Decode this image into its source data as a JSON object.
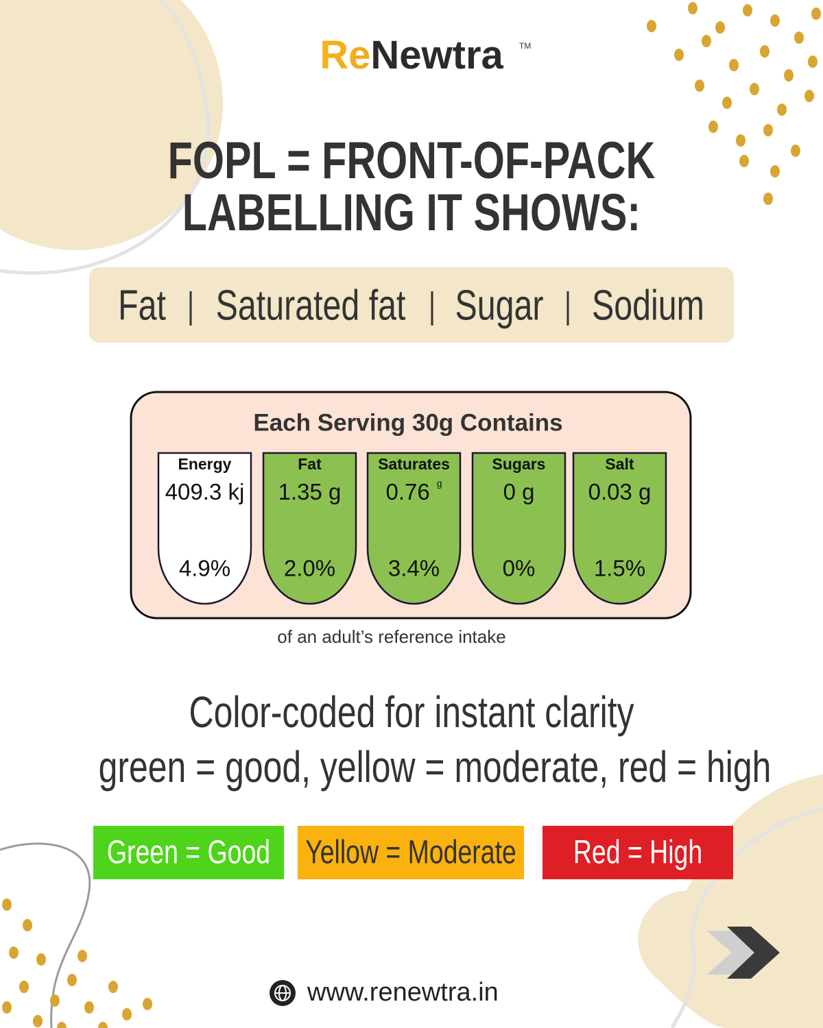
{
  "logo": {
    "part1": "Re",
    "part2": "Newtra",
    "mark": "TM"
  },
  "title": {
    "line1": "FOPL = FRONT-OF-PACK",
    "line2": "LABELLING IT SHOWS:"
  },
  "nutrients": [
    "Fat",
    "Saturated fat",
    "Sugar",
    "Sodium"
  ],
  "label": {
    "title": "Each Serving 30g Contains",
    "cells": [
      {
        "name": "Energy",
        "amount": "409.3 kj",
        "percent": "4.9%",
        "color": "#ffffff"
      },
      {
        "name": "Fat",
        "amount": "1.35 g",
        "percent": "2.0%",
        "color": "#8cc151"
      },
      {
        "name": "Saturates",
        "amount": "0.76",
        "unit": "g",
        "percent": "3.4%",
        "color": "#8cc151"
      },
      {
        "name": "Sugars",
        "amount": "0 g",
        "percent": "0%",
        "color": "#8cc151"
      },
      {
        "name": "Salt",
        "amount": "0.03 g",
        "percent": "1.5%",
        "color": "#8cc151"
      }
    ],
    "footnote": "of an adult’s reference intake"
  },
  "color_coding": {
    "heading": "Color-coded for instant clarity",
    "explanation": "green = good, yellow = moderate, red = high",
    "legend": [
      {
        "label": "Green = Good",
        "color": "#4ed41a",
        "text_color": "#ffffff"
      },
      {
        "label": "Yellow = Moderate",
        "color": "#fbb20f",
        "text_color": "#333333"
      },
      {
        "label": "Red = High",
        "color": "#de1f26",
        "text_color": "#ffffff"
      }
    ]
  },
  "footer": {
    "website": "www.renewtra.in"
  }
}
